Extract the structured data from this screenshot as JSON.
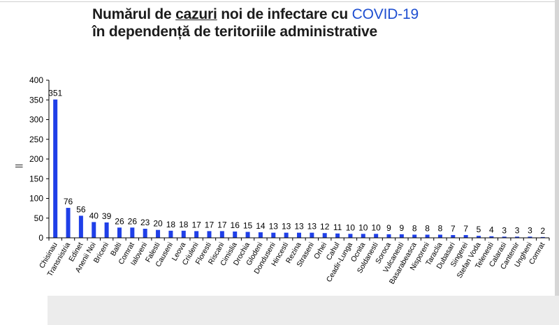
{
  "title": {
    "line1_a": "Numărul de ",
    "line1_b": "cazuri",
    "line1_c": " noi de infectare cu ",
    "line1_accent": "COVID-19",
    "line2": "în dependență de teritoriile administrative"
  },
  "colors": {
    "bar": "#1f3fe8",
    "title_accent": "#1f4fd1",
    "axis": "#000000"
  },
  "chart_data": {
    "type": "bar",
    "title": "Numărul de cazuri noi de infectare cu COVID-19 în dependență de teritoriile administrative",
    "ylabel": "||",
    "xlabel": "",
    "ylim": [
      0,
      400
    ],
    "yticks": [
      0,
      50,
      100,
      150,
      200,
      250,
      300,
      350,
      400
    ],
    "grid": false,
    "legend": "none",
    "categories": [
      "Chisinau",
      "Transnistria",
      "Edinet",
      "Anenii Noi",
      "Briceni",
      "Balti",
      "Comrat",
      "Ialoveni",
      "Falesti",
      "Causeni",
      "Leova",
      "Criuleni",
      "Floresti",
      "Riscani",
      "Cimislia",
      "Drochia",
      "Glodeni",
      "Donduseni",
      "Hincesti",
      "Rezina",
      "Straseni",
      "Orhei",
      "Cahul",
      "Ceadir-Lunga",
      "Ocnita",
      "Soldanesti",
      "Soroca",
      "Vulcanesti",
      "Basarabeasca",
      "Nisporeni",
      "Taraclia",
      "Dubasari",
      "Singerei",
      "Stefan Voda",
      "Telenesti",
      "Calarasi",
      "Cantemir",
      "Ungheni",
      "Comrat"
    ],
    "values": [
      351,
      76,
      56,
      40,
      39,
      26,
      26,
      23,
      20,
      18,
      18,
      17,
      17,
      17,
      16,
      15,
      14,
      13,
      13,
      13,
      13,
      12,
      11,
      10,
      10,
      10,
      9,
      9,
      8,
      8,
      8,
      7,
      7,
      5,
      4,
      3,
      3,
      3,
      2
    ]
  }
}
